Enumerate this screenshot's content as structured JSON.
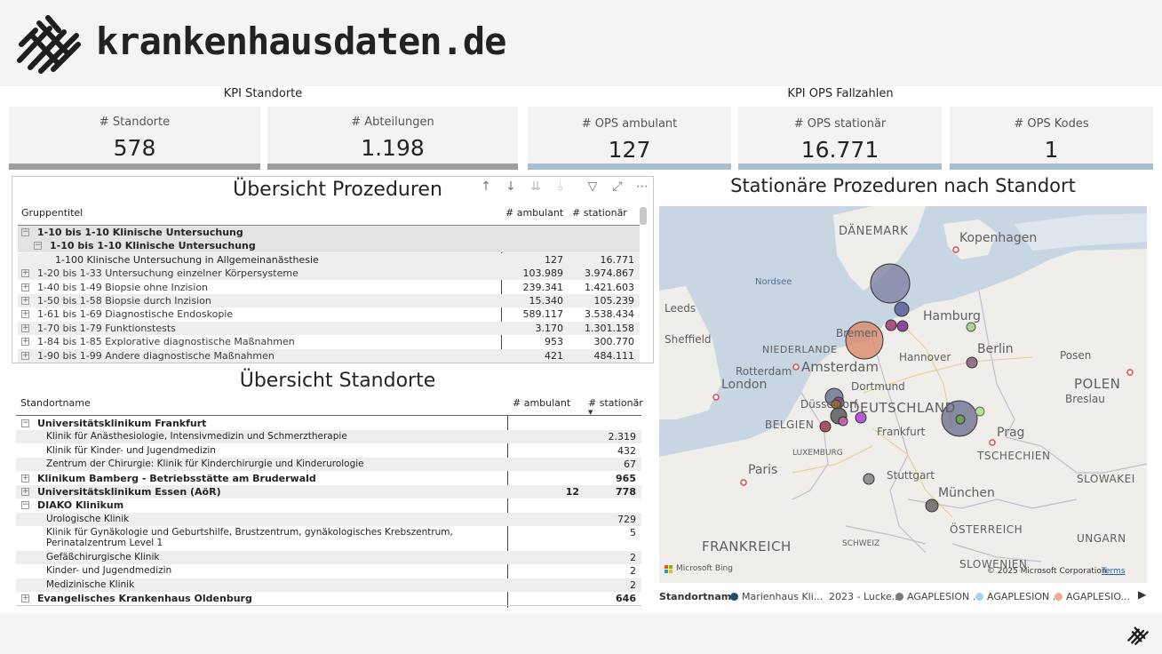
{
  "header": {
    "logo_text": "krankenhausdaten.de"
  },
  "sections": {
    "kpi_standorte": "KPI Standorte",
    "kpi_ops": "KPI OPS Fallzahlen"
  },
  "kpis": [
    {
      "label": "# Standorte",
      "value": "578"
    },
    {
      "label": "# Abteilungen",
      "value": "1.198"
    },
    {
      "label": "# OPS ambulant",
      "value": "127"
    },
    {
      "label": "# OPS stationär",
      "value": "16.771"
    },
    {
      "label": "# OPS Kodes",
      "value": "1"
    }
  ],
  "prozeduren": {
    "title": "Übersicht Prozeduren",
    "col_group": "Gruppentitel",
    "col_amb": "# ambulant",
    "col_stat": "# stationär",
    "rows": [
      {
        "label": "1-10 bis 1-10 Klinische Untersuchung",
        "amb": "",
        "stat": "",
        "exp": "−"
      },
      {
        "label": "1-10 bis 1-10 Klinische Untersuchung",
        "amb": "",
        "stat": "",
        "exp": "−"
      },
      {
        "label": "1-100 Klinische Untersuchung in Allgemeinanästhesie",
        "amb": "127",
        "stat": "16.771",
        "exp": ""
      },
      {
        "label": "1-20 bis 1-33 Untersuchung einzelner Körpersysteme",
        "amb": "103.989",
        "stat": "3.974.867",
        "exp": "+"
      },
      {
        "label": "1-40 bis 1-49 Biopsie ohne Inzision",
        "amb": "239.341",
        "stat": "1.421.603",
        "exp": "+"
      },
      {
        "label": "1-50 bis 1-58 Biopsie durch Inzision",
        "amb": "15.340",
        "stat": "105.239",
        "exp": "+"
      },
      {
        "label": "1-61 bis 1-69 Diagnostische Endoskopie",
        "amb": "589.117",
        "stat": "3.538.434",
        "exp": "+"
      },
      {
        "label": "1-70 bis 1-79 Funktionstests",
        "amb": "3.170",
        "stat": "1.301.158",
        "exp": "+"
      },
      {
        "label": "1-84 bis 1-85 Explorative diagnostische Maßnahmen",
        "amb": "953",
        "stat": "300.770",
        "exp": "+"
      },
      {
        "label": "1-90 bis 1-99 Andere diagnostische Maßnahmen",
        "amb": "421",
        "stat": "484.111",
        "exp": "+"
      }
    ]
  },
  "standorte": {
    "title": "Übersicht Standorte",
    "col_name": "Standortname",
    "col_amb": "# ambulant",
    "col_stat": "# stationär",
    "rows": [
      {
        "label": "Universitätsklinikum Frankfurt",
        "amb": "",
        "stat": "",
        "exp": "−",
        "lvl": 0
      },
      {
        "label": "Klinik für Anästhesiologie, Intensivmedizin und Schmerztherapie",
        "amb": "",
        "stat": "2.319",
        "exp": "",
        "lvl": 1
      },
      {
        "label": "Klinik für Kinder- und Jugendmedizin",
        "amb": "",
        "stat": "432",
        "exp": "",
        "lvl": 1
      },
      {
        "label": "Zentrum der Chirurgie: Klinik für Kinderchirurgie und Kinderurologie",
        "amb": "",
        "stat": "67",
        "exp": "",
        "lvl": 1
      },
      {
        "label": "Klinikum Bamberg - Betriebsstätte am Bruderwald",
        "amb": "",
        "stat": "965",
        "exp": "+",
        "lvl": 0
      },
      {
        "label": "Universitätsklinikum Essen (AöR)",
        "amb": "12",
        "stat": "778",
        "exp": "+",
        "lvl": 0
      },
      {
        "label": "DIAKO Klinikum",
        "amb": "",
        "stat": "",
        "exp": "−",
        "lvl": 0
      },
      {
        "label": "Urologische Klinik",
        "amb": "",
        "stat": "729",
        "exp": "",
        "lvl": 1
      },
      {
        "label": "Klinik für Gynäkologie und Geburtshilfe, Brustzentrum, gynäkologisches Krebszentrum,",
        "label2": "Perinatalzentrum Level 1",
        "amb": "",
        "stat": "5",
        "exp": "",
        "lvl": 1
      },
      {
        "label": "Gefäßchirurgische Klinik",
        "amb": "",
        "stat": "2",
        "exp": "",
        "lvl": 1
      },
      {
        "label": "Kinder- und Jugendmedizin",
        "amb": "",
        "stat": "2",
        "exp": "",
        "lvl": 1
      },
      {
        "label": "Medizinische Klinik",
        "amb": "",
        "stat": "2",
        "exp": "",
        "lvl": 1
      },
      {
        "label": "Evangelisches Krankenhaus Oldenburg",
        "amb": "",
        "stat": "646",
        "exp": "+",
        "lvl": 0
      }
    ]
  },
  "map": {
    "title": "Stationäre Prozeduren nach Standort",
    "labels": {
      "daenemark": "DÄNEMARK",
      "kopenhagen": "Kopenhagen",
      "nordsee": "Nordsee",
      "leeds": "Leeds",
      "sheffield": "Sheffield",
      "hamburg": "Hamburg",
      "bremen": "Bremen",
      "niederlande": "NIEDERLANDE",
      "berlin": "Berlin",
      "rotterdam": "Rotterdam",
      "amsterdam": "Amsterdam",
      "hannover": "Hannover",
      "posen": "Posen",
      "london": "London",
      "dortmund": "Dortmund",
      "polen": "POLEN",
      "duesseldorf": "Düsseldorf",
      "deutschland": "DEUTSCHLAND",
      "breslau": "Breslau",
      "belgien": "BELGIEN",
      "frankfurt": "Frankfurt",
      "prag": "Prag",
      "luxemburg": "LUXEMBURG",
      "tschechien": "TSCHECHIEN",
      "paris": "Paris",
      "stuttgart": "Stuttgart",
      "slowakei": "SLOWAKEI",
      "muenchen": "München",
      "oesterreich": "ÖSTERREICH",
      "frankreich": "FRANKREICH",
      "schweiz": "SCHWEIZ",
      "ungarn": "UNGARN",
      "slowenien": "SLOWENIEN"
    },
    "attribution": "© 2025 Microsoft Corporation",
    "terms": "Terms",
    "bing": "Microsoft Bing",
    "colors": {
      "water": "#c8d6e3",
      "land": "#efeeea"
    }
  },
  "legend": {
    "title": "Standortname",
    "items": [
      {
        "label": "Marienhaus Kli...",
        "color": "#1f4e6e"
      },
      {
        "label": "2023 - Lucke...",
        "color": ""
      },
      {
        "label": "AGAPLESION ...",
        "color": "#7a7a7a"
      },
      {
        "label": "AGAPLESION ...",
        "color": "#a4d4ee"
      },
      {
        "label": "AGAPLESIO...",
        "color": "#f2a98a"
      }
    ]
  }
}
